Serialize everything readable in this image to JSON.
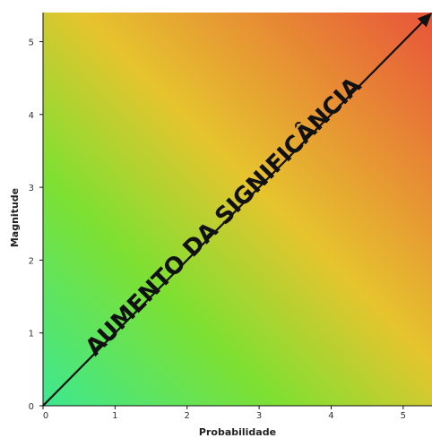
{
  "chart_data": {
    "type": "heatmap",
    "title": "",
    "xlabel": "Probabilidade",
    "ylabel": "Magnitude",
    "xlim": [
      0,
      5.4
    ],
    "ylim": [
      0,
      5.4
    ],
    "x_ticks": [
      0,
      1,
      2,
      3,
      4,
      5
    ],
    "y_ticks": [
      0,
      1,
      2,
      3,
      4,
      5
    ],
    "gradient": {
      "low_color": "#3de890",
      "mid_low_color": "#7ee032",
      "mid_color": "#e6c42e",
      "high_color": "#e8543a"
    },
    "diagonal_line": {
      "from": [
        0,
        0
      ],
      "to": [
        5.4,
        5.4
      ],
      "color": "#111111",
      "arrow": true
    },
    "annotation": "AUMENTO DA SIGNIFICÂNCIA",
    "grid": false
  }
}
